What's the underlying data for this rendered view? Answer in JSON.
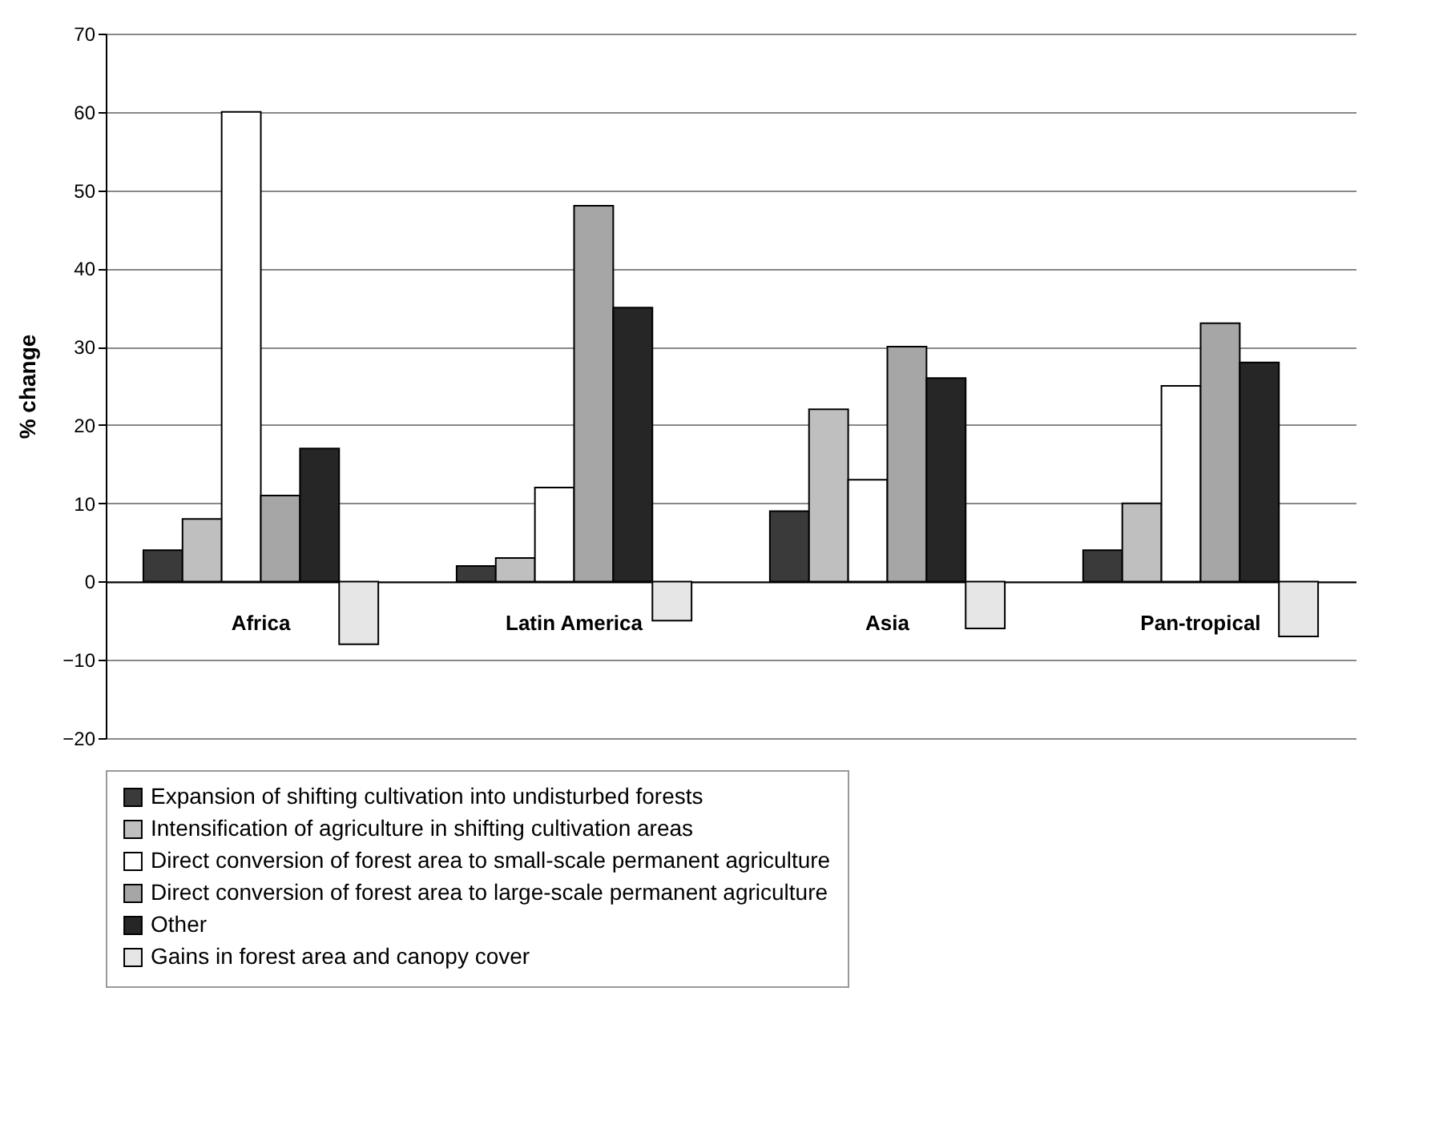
{
  "chart_data": {
    "type": "bar",
    "ylabel": "% change",
    "categories": [
      "Africa",
      "Latin America",
      "Asia",
      "Pan-tropical"
    ],
    "series": [
      {
        "name": "Expansion of shifting cultivation into undisturbed forests",
        "color": "#3a3a3a",
        "values": [
          4,
          2,
          9,
          4
        ]
      },
      {
        "name": "Intensification of agriculture in shifting cultivation areas",
        "color": "#bfbfbf",
        "values": [
          8,
          3,
          22,
          10
        ]
      },
      {
        "name": "Direct conversion of forest area to small-scale permanent agriculture",
        "color": "#ffffff",
        "values": [
          60,
          12,
          13,
          25
        ]
      },
      {
        "name": "Direct conversion of forest area to large-scale permanent agriculture",
        "color": "#a6a6a6",
        "values": [
          11,
          48,
          30,
          33
        ]
      },
      {
        "name": "Other",
        "color": "#262626",
        "values": [
          17,
          35,
          26,
          28
        ]
      },
      {
        "name": "Gains in forest area and canopy cover",
        "color": "#e6e6e6",
        "values": [
          -8,
          -5,
          -6,
          -7
        ]
      }
    ],
    "ylim": [
      -20,
      70
    ],
    "yticks": [
      -20,
      -10,
      0,
      10,
      20,
      30,
      40,
      50,
      60,
      70
    ],
    "grid": "y",
    "legend": "bottom"
  }
}
